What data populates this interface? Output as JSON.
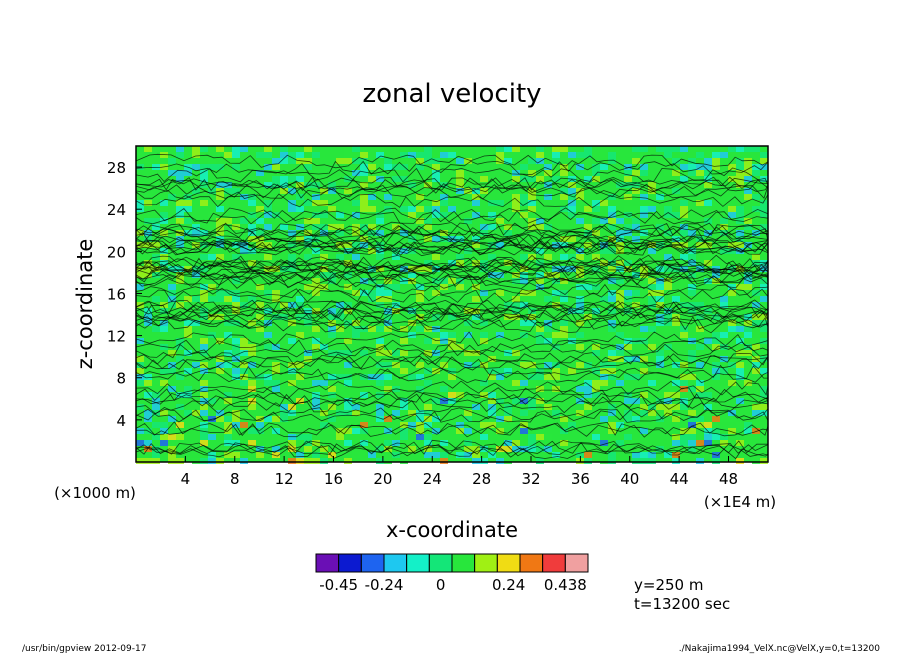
{
  "chart_data": {
    "type": "heatmap",
    "title": "zonal velocity",
    "xlabel": "x-coordinate",
    "ylabel": "z-coordinate",
    "x_unit_label": "(×1000 m)",
    "x_scale_label": "(×1E4 m)",
    "x_ticks": [
      "4",
      "8",
      "12",
      "16",
      "20",
      "24",
      "28",
      "32",
      "36",
      "40",
      "44",
      "48"
    ],
    "y_ticks": [
      "4",
      "8",
      "12",
      "16",
      "20",
      "24",
      "28"
    ],
    "xlim": [
      0,
      51.2
    ],
    "ylim": [
      0,
      30
    ],
    "colorbar": {
      "colors": [
        "#6a0fb5",
        "#0c1ad0",
        "#1e64f0",
        "#1ec8f0",
        "#14f0c8",
        "#14e678",
        "#28e63c",
        "#a0f014",
        "#f0dc14",
        "#f07814",
        "#f03c3c",
        "#f0a0a0"
      ],
      "tick_labels": [
        "-0.45",
        "-0.24",
        "0",
        "0.24",
        "0.438"
      ]
    },
    "annotations": [
      "y=250 m",
      "t=13200 sec"
    ],
    "contours": "dense, irregular contour lines across the whole domain"
  },
  "footer": {
    "left": "/usr/bin/gpview  2012-09-17",
    "right": "./Nakajima1994_VelX.nc@VelX,y=0,t=13200"
  }
}
